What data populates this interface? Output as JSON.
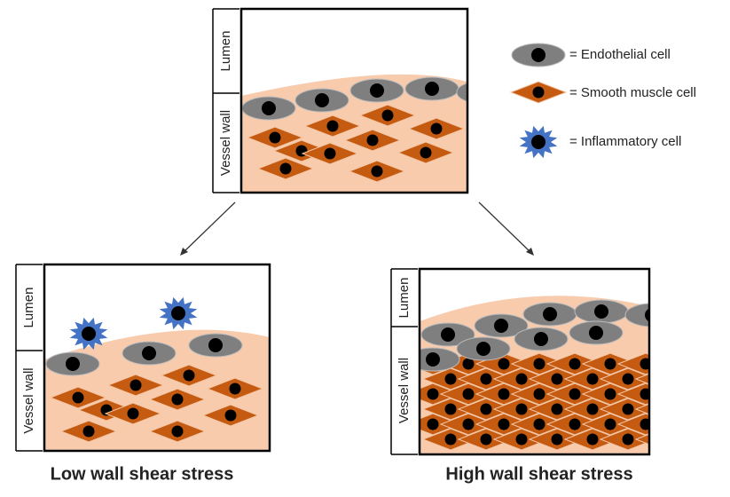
{
  "top_panel": {
    "labels": [
      "Lumen",
      "Vessel wall"
    ]
  },
  "legend": [
    {
      "label": "= Endothelial cell"
    },
    {
      "label": "= Smooth muscle cell"
    },
    {
      "label": "= Inflammatory cell"
    }
  ],
  "panels": [
    {
      "caption": "Low wall shear stress",
      "labels": [
        "Lumen",
        "Vessel wall"
      ]
    },
    {
      "caption": "High wall shear stress",
      "labels": [
        "Lumen",
        "Vessel wall"
      ]
    }
  ]
}
